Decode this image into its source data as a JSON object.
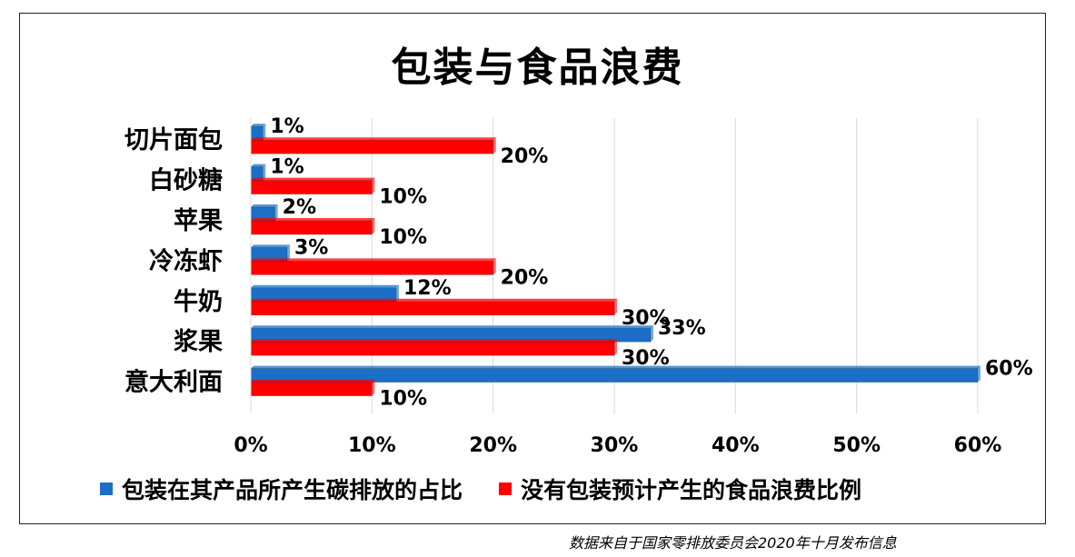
{
  "chart_data": {
    "type": "bar",
    "orientation": "horizontal",
    "title": "包装与食品浪费",
    "categories": [
      "切片面包",
      "白砂糖",
      "苹果",
      "冷冻虾",
      "牛奶",
      "浆果",
      "意大利面"
    ],
    "series": [
      {
        "name": "包装在其产品所产生碳排放的占比",
        "color": "#1B6FC6",
        "values": [
          1,
          1,
          2,
          3,
          12,
          33,
          60
        ],
        "labels": [
          "1%",
          "1%",
          "2%",
          "3%",
          "12%",
          "33%",
          "60%"
        ]
      },
      {
        "name": "没有包装预计产生的食品浪费比例",
        "color": "#FF0000",
        "values": [
          20,
          10,
          10,
          20,
          30,
          30,
          10
        ],
        "labels": [
          "20%",
          "10%",
          "10%",
          "20%",
          "30%",
          "30%",
          "10%"
        ]
      }
    ],
    "x_ticks": [
      "0%",
      "10%",
      "20%",
      "30%",
      "40%",
      "50%",
      "60%"
    ],
    "xlim": [
      0,
      60
    ],
    "grid": true,
    "legend_position": "bottom"
  },
  "source_note": "数据来自于国家零排放委员会2020年十月发布信息"
}
